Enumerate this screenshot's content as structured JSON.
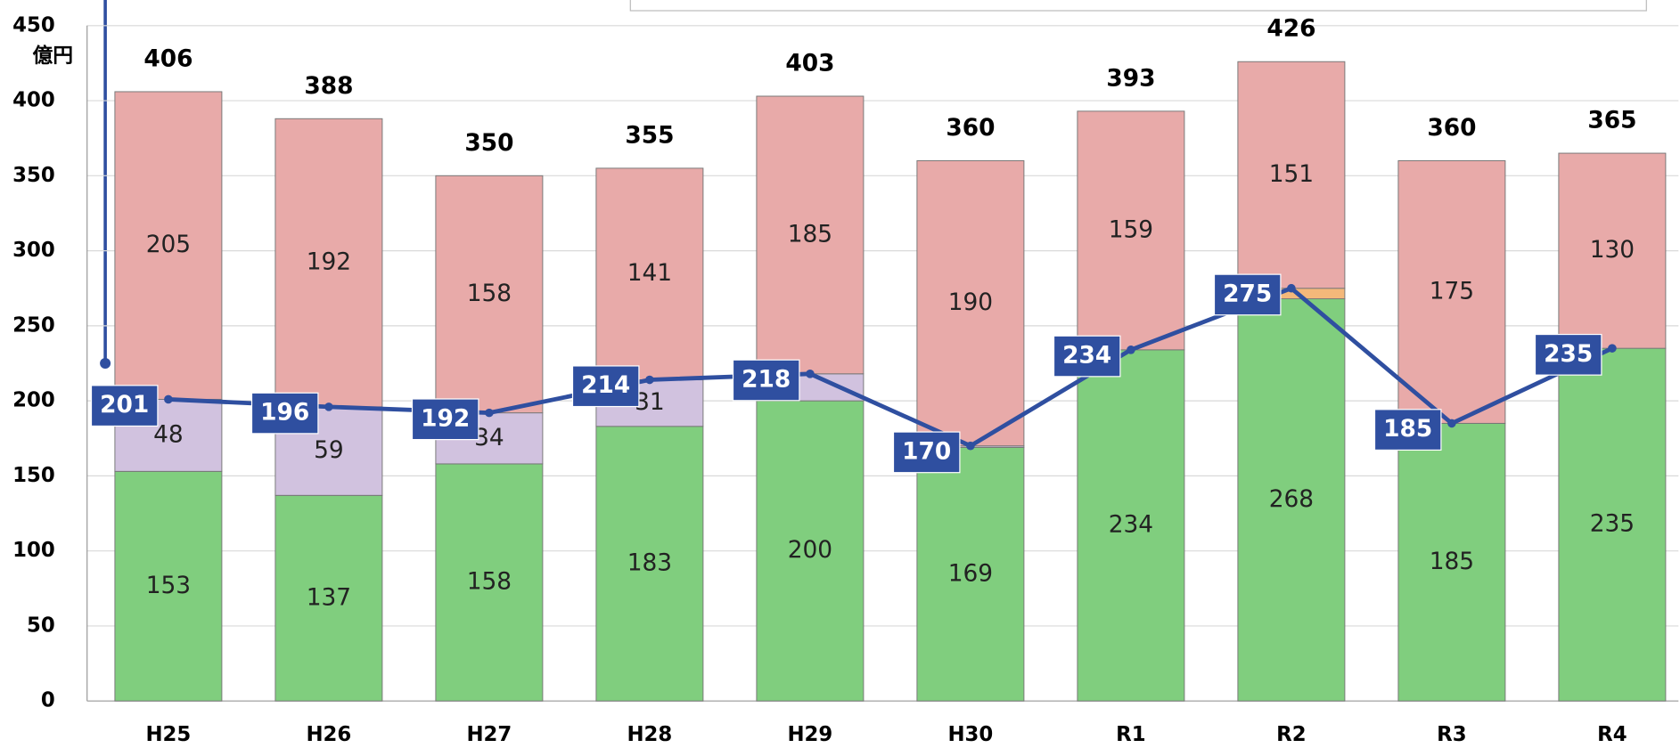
{
  "chart_data": {
    "type": "stacked_bar_line",
    "y_unit": "億円",
    "categories": [
      "H25",
      "H26",
      "H27",
      "H28",
      "H29",
      "H30",
      "R1",
      "R2",
      "R3",
      "R4"
    ],
    "series": [
      {
        "color": "#80ce7e",
        "values": [
          153,
          137,
          158,
          183,
          200,
          169,
          234,
          268,
          185,
          235
        ]
      },
      {
        "color": "#d1c2df",
        "values": [
          48,
          59,
          34,
          31,
          18,
          1,
          0,
          0,
          0,
          0
        ]
      },
      {
        "color": "#f4b87a",
        "values": [
          0,
          0,
          0,
          0,
          0,
          0,
          0,
          7,
          0,
          0
        ]
      },
      {
        "color": "#e8aaa9",
        "values": [
          205,
          192,
          158,
          141,
          185,
          190,
          159,
          151,
          175,
          130
        ]
      }
    ],
    "totals": [
      406,
      388,
      350,
      355,
      403,
      360,
      393,
      426,
      360,
      365
    ],
    "line": {
      "color": "#2f4fa0",
      "values": [
        201,
        196,
        192,
        214,
        218,
        170,
        234,
        275,
        185,
        235
      ]
    },
    "ylim": [
      0,
      450
    ],
    "yticks": [
      0,
      50,
      100,
      150,
      200,
      250,
      300,
      350,
      400,
      450
    ],
    "grid": true
  }
}
